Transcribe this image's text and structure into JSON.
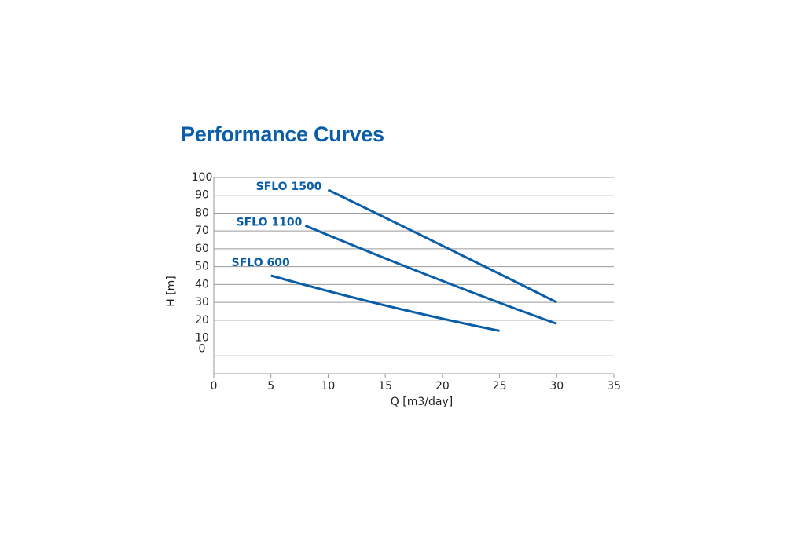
{
  "header": {
    "title": "Performance Curves"
  },
  "colors": {
    "accent": "#0a5ea8",
    "grid": "#9a9a9a",
    "text": "#222222"
  },
  "chart_data": {
    "type": "line",
    "title": "Performance Curves",
    "xlabel": "Q [m3/day]",
    "ylabel": "H [m]",
    "xlim": [
      0,
      35
    ],
    "ylim": [
      -10,
      100
    ],
    "x_ticks": [
      0,
      5,
      10,
      15,
      20,
      25,
      30,
      35
    ],
    "y_ticks": [
      100,
      90,
      80,
      70,
      60,
      50,
      40,
      30,
      20,
      10,
      0
    ],
    "grid": true,
    "legend": "inline labels",
    "series": [
      {
        "name": "SFLO 1500",
        "x": [
          10,
          20,
          30
        ],
        "y": [
          93,
          62,
          30
        ]
      },
      {
        "name": "SFLO 1100",
        "x": [
          8,
          20,
          30
        ],
        "y": [
          73,
          41,
          18
        ]
      },
      {
        "name": "SFLO 600",
        "x": [
          5,
          15,
          25
        ],
        "y": [
          45,
          27,
          14
        ]
      }
    ]
  }
}
